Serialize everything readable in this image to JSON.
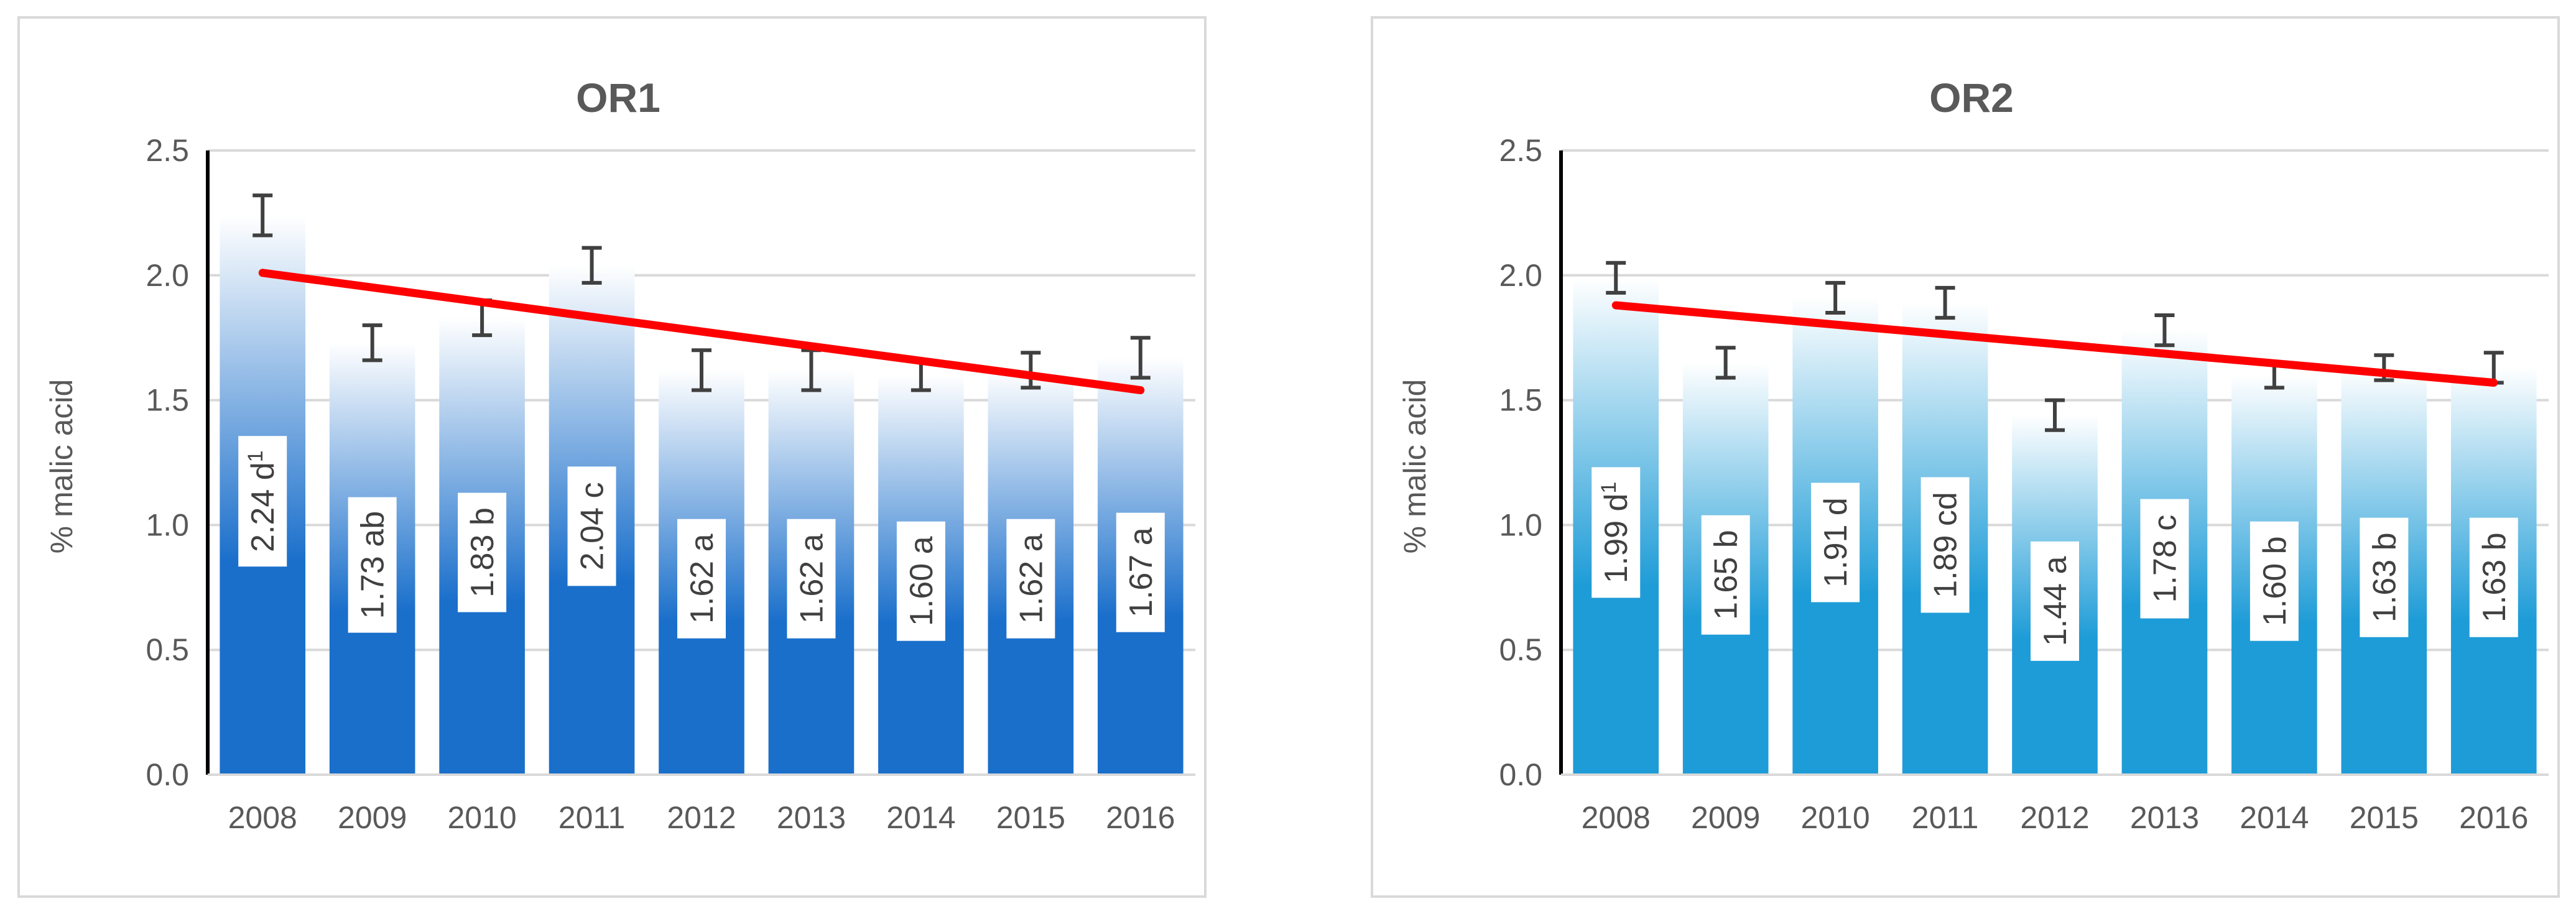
{
  "chart_data": [
    {
      "type": "bar",
      "title": "OR1",
      "xlabel": "",
      "ylabel": "% malic acid",
      "ylim": [
        0,
        2.5
      ],
      "yticks": [
        "0.0",
        "0.5",
        "1.0",
        "1.5",
        "2.0",
        "2.5"
      ],
      "grid": true,
      "categories": [
        "2008",
        "2009",
        "2010",
        "2011",
        "2012",
        "2013",
        "2014",
        "2015",
        "2016"
      ],
      "values": [
        2.24,
        1.73,
        1.83,
        2.04,
        1.62,
        1.62,
        1.6,
        1.62,
        1.67
      ],
      "error": [
        0.08,
        0.07,
        0.07,
        0.07,
        0.08,
        0.08,
        0.06,
        0.07,
        0.08
      ],
      "labels": [
        "2.24 d",
        "1.73 ab",
        "1.83 b",
        "2.04 c",
        "1.62 a",
        "1.62 a",
        "1.60 a",
        "1.62 a",
        "1.67 a"
      ],
      "label_superscripts": [
        "1",
        "",
        "",
        "",
        "",
        "",
        "",
        "",
        ""
      ],
      "trendline": {
        "start": 2.01,
        "end": 1.54
      },
      "colors": {
        "bar": "#1a6fcb",
        "bar_fade": "#ffffff",
        "trend": "#ff0000"
      }
    },
    {
      "type": "bar",
      "title": "OR2",
      "xlabel": "",
      "ylabel": "% malic acid",
      "ylim": [
        0,
        2.5
      ],
      "yticks": [
        "0.0",
        "0.5",
        "1.0",
        "1.5",
        "2.0",
        "2.5"
      ],
      "grid": true,
      "categories": [
        "2008",
        "2009",
        "2010",
        "2011",
        "2012",
        "2013",
        "2014",
        "2015",
        "2016"
      ],
      "values": [
        1.99,
        1.65,
        1.91,
        1.89,
        1.44,
        1.78,
        1.6,
        1.63,
        1.63
      ],
      "error": [
        0.06,
        0.06,
        0.06,
        0.06,
        0.06,
        0.06,
        0.05,
        0.05,
        0.06
      ],
      "labels": [
        "1.99 d",
        "1.65 b",
        "1.91 d",
        "1.89 cd",
        "1.44 a",
        "1.78 c",
        "1.60 b",
        "1.63 b",
        "1.63 b"
      ],
      "label_superscripts": [
        "1",
        "",
        "",
        "",
        "",
        "",
        "",
        "",
        ""
      ],
      "trendline": {
        "start": 1.88,
        "end": 1.57
      },
      "colors": {
        "bar": "#1e9cd7",
        "bar_fade": "#ffffff",
        "trend": "#ff0000"
      }
    }
  ]
}
